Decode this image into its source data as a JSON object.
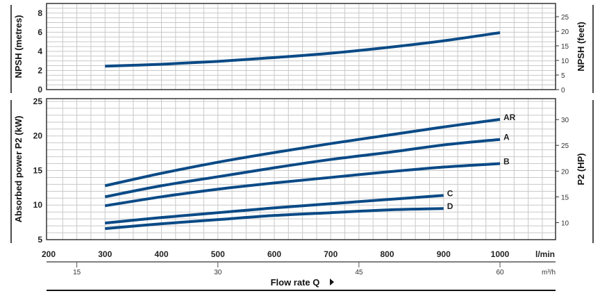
{
  "chart_data": [
    {
      "type": "line",
      "ylabel": "NPSH (metres)",
      "ylabel_right": "NPSH (feet)",
      "ylim": [
        0,
        9
      ],
      "yticks": [
        0,
        2,
        4,
        6,
        8
      ],
      "yticks_right": [
        0,
        5,
        10,
        15,
        20,
        25
      ],
      "xlim": [
        200,
        1100
      ],
      "grid": true,
      "series": [
        {
          "x": [
            300,
            400,
            500,
            600,
            700,
            800,
            900,
            1000
          ],
          "y": [
            2.45,
            2.65,
            2.95,
            3.35,
            3.8,
            4.4,
            5.1,
            5.95
          ]
        }
      ]
    },
    {
      "type": "line",
      "ylabel": "Absorbed power P2 (kW)",
      "ylabel_right": "P2 (HP)",
      "ylim": [
        5,
        25.4
      ],
      "yticks": [
        5,
        10,
        15,
        20,
        25
      ],
      "yticks_right": [
        10,
        15,
        20,
        25,
        30
      ],
      "xlim": [
        200,
        1100
      ],
      "grid": true,
      "series": [
        {
          "name": "AR",
          "x": [
            300,
            400,
            500,
            600,
            700,
            800,
            900,
            1000
          ],
          "y": [
            12.8,
            14.6,
            16.2,
            17.6,
            18.9,
            20.1,
            21.3,
            22.4
          ]
        },
        {
          "name": "A",
          "x": [
            300,
            400,
            500,
            600,
            700,
            800,
            900,
            1000
          ],
          "y": [
            11.2,
            12.8,
            14.1,
            15.4,
            16.6,
            17.6,
            18.7,
            19.5
          ]
        },
        {
          "name": "B",
          "x": [
            300,
            400,
            500,
            600,
            700,
            800,
            900,
            1000
          ],
          "y": [
            9.9,
            11.2,
            12.3,
            13.2,
            14.0,
            14.8,
            15.5,
            16.0
          ]
        },
        {
          "name": "C",
          "x": [
            300,
            400,
            500,
            600,
            700,
            800,
            900
          ],
          "y": [
            7.4,
            8.2,
            8.9,
            9.6,
            10.2,
            10.8,
            11.4
          ]
        },
        {
          "name": "D",
          "x": [
            300,
            400,
            500,
            600,
            700,
            800,
            900
          ],
          "y": [
            6.6,
            7.3,
            7.9,
            8.5,
            8.9,
            9.3,
            9.5
          ]
        }
      ]
    }
  ],
  "x_axis": {
    "ticks_lmin": [
      200,
      300,
      400,
      500,
      600,
      700,
      800,
      900,
      1000
    ],
    "unit_lmin": "l/min",
    "ticks_m3h": [
      15,
      30,
      45,
      60
    ],
    "unit_m3h": "m³/h",
    "label": "Flow rate Q"
  },
  "colors": {
    "curve": "#0a4a86",
    "grid": "#c8c8c8",
    "frame": "#333333"
  }
}
